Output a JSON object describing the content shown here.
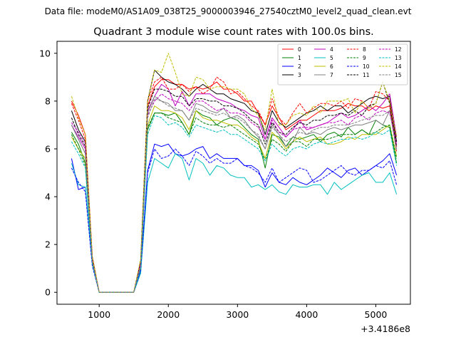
{
  "figure": {
    "suptitle": "Data file: modeM0/AS1A09_038T25_9000003946_27540cztM0_level2_quad_clean.evt",
    "offset_label": "+3.4186e8"
  },
  "chart_data": {
    "type": "line",
    "title": "Quadrant 3 module wise count rates with 100.0s bins.",
    "xlabel": "",
    "ylabel": "",
    "xlim": [
      390,
      5500
    ],
    "ylim": [
      -0.5,
      10.5
    ],
    "x_offset": 341860000,
    "grid": false,
    "legend_position": "top-right",
    "xticks": [
      1000,
      2000,
      3000,
      4000,
      5000
    ],
    "yticks": [
      0,
      2,
      4,
      6,
      8,
      10
    ],
    "x": [
      600,
      700,
      800,
      900,
      1000,
      1100,
      1200,
      1300,
      1400,
      1500,
      1600,
      1700,
      1800,
      1900,
      2000,
      2100,
      2200,
      2300,
      2400,
      2500,
      2600,
      2700,
      2800,
      2900,
      3000,
      3100,
      3200,
      3300,
      3400,
      3500,
      3600,
      3700,
      3800,
      3900,
      4000,
      4100,
      4200,
      4300,
      4400,
      4500,
      4600,
      4700,
      4800,
      4900,
      5000,
      5100,
      5200,
      5300
    ],
    "series": [
      {
        "name": "0",
        "color": "#ff0000",
        "dash": "solid",
        "values": [
          8.0,
          7.4,
          6.6,
          1.5,
          0.0,
          0.0,
          0.0,
          0.0,
          0.0,
          0.0,
          1.2,
          7.8,
          8.6,
          8.9,
          8.9,
          8.7,
          8.7,
          8.5,
          8.6,
          8.5,
          8.6,
          8.8,
          8.5,
          8.5,
          8.3,
          8.0,
          8.0,
          7.5,
          7.0,
          7.8,
          7.3,
          6.8,
          7.0,
          7.2,
          7.2,
          7.4,
          7.6,
          7.6,
          7.6,
          7.7,
          7.9,
          7.8,
          7.8,
          7.6,
          7.8,
          7.7,
          7.8,
          5.9
        ]
      },
      {
        "name": "1",
        "color": "#008000",
        "dash": "solid",
        "values": [
          6.7,
          6.2,
          5.4,
          1.3,
          0.0,
          0.0,
          0.0,
          0.0,
          0.0,
          0.0,
          1.1,
          6.8,
          7.5,
          7.5,
          7.4,
          7.5,
          7.1,
          6.6,
          7.6,
          7.4,
          7.3,
          7.0,
          7.2,
          7.3,
          7.2,
          6.9,
          6.6,
          6.4,
          5.2,
          6.6,
          6.5,
          6.1,
          6.5,
          6.4,
          6.5,
          6.6,
          6.3,
          6.6,
          6.7,
          6.5,
          6.9,
          6.6,
          6.8,
          6.6,
          7.2,
          7.0,
          6.9,
          5.4
        ]
      },
      {
        "name": "2",
        "color": "#0000ff",
        "dash": "solid",
        "values": [
          5.6,
          4.3,
          4.4,
          1.2,
          0.0,
          0.0,
          0.0,
          0.0,
          0.0,
          0.0,
          0.9,
          5.1,
          6.2,
          6.1,
          6.2,
          5.8,
          5.7,
          5.8,
          6.0,
          6.1,
          5.6,
          5.8,
          5.6,
          5.6,
          5.6,
          5.3,
          5.3,
          5.1,
          4.4,
          5.0,
          4.6,
          4.5,
          4.8,
          4.6,
          4.5,
          4.7,
          4.9,
          5.2,
          5.0,
          4.8,
          5.1,
          5.2,
          4.9,
          5.1,
          5.3,
          5.5,
          5.8,
          4.9
        ]
      },
      {
        "name": "3",
        "color": "#000000",
        "dash": "solid",
        "values": [
          7.6,
          6.8,
          6.3,
          1.4,
          0.0,
          0.0,
          0.0,
          0.0,
          0.0,
          0.0,
          1.3,
          8.0,
          9.3,
          9.0,
          8.8,
          8.7,
          8.5,
          8.2,
          8.5,
          8.7,
          8.5,
          8.3,
          8.3,
          8.1,
          8.0,
          7.9,
          7.6,
          7.5,
          6.6,
          7.6,
          7.1,
          6.9,
          7.1,
          7.3,
          7.5,
          7.6,
          7.8,
          7.6,
          7.8,
          7.8,
          7.5,
          7.7,
          7.9,
          8.1,
          8.2,
          8.1,
          8.2,
          6.3
        ]
      },
      {
        "name": "4",
        "color": "#bf00bf",
        "dash": "solid",
        "values": [
          7.0,
          6.5,
          6.0,
          1.4,
          0.0,
          0.0,
          0.0,
          0.0,
          0.0,
          0.0,
          1.2,
          7.6,
          8.2,
          8.7,
          8.5,
          7.8,
          8.4,
          7.8,
          8.3,
          8.3,
          8.3,
          8.1,
          8.0,
          7.9,
          7.7,
          7.6,
          7.4,
          7.3,
          6.4,
          7.3,
          6.9,
          6.5,
          6.8,
          7.2,
          6.8,
          6.9,
          7.0,
          7.1,
          7.3,
          7.5,
          7.3,
          7.4,
          7.6,
          7.8,
          7.6,
          7.9,
          8.3,
          6.5
        ]
      },
      {
        "name": "5",
        "color": "#00bfbf",
        "dash": "solid",
        "values": [
          5.4,
          4.5,
          4.4,
          1.2,
          0.0,
          0.0,
          0.0,
          0.0,
          0.0,
          0.0,
          0.8,
          4.6,
          5.6,
          5.4,
          5.2,
          5.8,
          5.6,
          4.7,
          5.6,
          5.4,
          4.9,
          5.3,
          5.2,
          4.9,
          4.8,
          4.8,
          4.4,
          4.5,
          4.3,
          4.5,
          4.2,
          4.1,
          4.5,
          4.4,
          4.4,
          4.5,
          4.5,
          4.1,
          4.6,
          4.3,
          4.5,
          4.7,
          4.9,
          5.0,
          4.6,
          4.6,
          5.0,
          4.1
        ]
      },
      {
        "name": "6",
        "color": "#bfbf00",
        "dash": "solid",
        "values": [
          6.5,
          6.0,
          5.6,
          1.3,
          0.0,
          0.0,
          0.0,
          0.0,
          0.0,
          0.0,
          1.0,
          7.0,
          7.8,
          7.6,
          7.6,
          7.5,
          7.3,
          6.8,
          7.6,
          7.3,
          7.2,
          7.2,
          7.1,
          7.0,
          7.0,
          6.8,
          6.5,
          6.3,
          5.6,
          6.7,
          6.4,
          6.0,
          6.3,
          6.5,
          6.3,
          6.4,
          6.5,
          6.2,
          6.2,
          6.3,
          6.5,
          6.4,
          6.6,
          6.6,
          6.6,
          6.8,
          7.0,
          5.7
        ]
      },
      {
        "name": "7",
        "color": "#808080",
        "dash": "solid",
        "values": [
          7.0,
          6.4,
          5.8,
          1.3,
          0.0,
          0.0,
          0.0,
          0.0,
          0.0,
          0.0,
          1.1,
          7.5,
          8.2,
          8.0,
          7.9,
          7.6,
          7.6,
          7.2,
          7.9,
          7.8,
          7.6,
          7.5,
          7.7,
          7.3,
          7.4,
          7.2,
          6.8,
          6.5,
          6.0,
          7.0,
          6.6,
          6.1,
          6.3,
          6.9,
          6.6,
          6.7,
          6.6,
          6.8,
          6.9,
          6.8,
          6.9,
          7.0,
          7.0,
          7.1,
          7.2,
          7.0,
          7.6,
          6.0
        ]
      },
      {
        "name": "8",
        "color": "#ff0000",
        "dash": "dashed",
        "values": [
          7.9,
          7.2,
          6.4,
          1.5,
          0.0,
          0.0,
          0.0,
          0.0,
          0.0,
          0.0,
          1.3,
          8.0,
          8.8,
          9.0,
          8.5,
          8.5,
          8.7,
          8.4,
          8.6,
          8.3,
          8.5,
          9.0,
          8.8,
          8.3,
          8.4,
          8.1,
          7.8,
          7.6,
          7.0,
          8.1,
          7.3,
          7.0,
          7.5,
          7.9,
          7.5,
          7.7,
          7.9,
          7.9,
          7.8,
          8.0,
          7.7,
          8.1,
          8.0,
          7.7,
          8.4,
          8.3,
          8.0,
          6.1
        ]
      },
      {
        "name": "9",
        "color": "#008000",
        "dash": "dashed",
        "values": [
          6.6,
          6.0,
          5.3,
          1.3,
          0.0,
          0.0,
          0.0,
          0.0,
          0.0,
          0.0,
          1.0,
          6.9,
          7.5,
          7.5,
          7.3,
          7.2,
          7.1,
          6.6,
          7.3,
          7.1,
          7.0,
          7.0,
          6.9,
          7.0,
          6.8,
          6.6,
          6.4,
          6.2,
          5.5,
          6.4,
          6.2,
          5.9,
          6.3,
          6.3,
          6.1,
          6.4,
          6.4,
          6.4,
          6.5,
          6.6,
          6.6,
          6.6,
          6.8,
          6.6,
          6.7,
          6.9,
          7.0,
          5.6
        ]
      },
      {
        "name": "10",
        "color": "#0000ff",
        "dash": "dashed",
        "values": [
          5.2,
          4.6,
          4.2,
          1.1,
          0.0,
          0.0,
          0.0,
          0.0,
          0.0,
          0.0,
          0.9,
          5.0,
          6.0,
          5.6,
          5.7,
          6.0,
          5.7,
          5.3,
          5.9,
          5.7,
          5.4,
          5.6,
          5.4,
          5.4,
          5.6,
          5.3,
          5.2,
          5.0,
          4.6,
          5.2,
          4.6,
          4.8,
          5.0,
          5.2,
          5.1,
          4.6,
          4.7,
          4.9,
          5.1,
          5.3,
          5.0,
          4.9,
          5.1,
          5.1,
          5.3,
          5.2,
          5.5,
          4.5
        ]
      },
      {
        "name": "11",
        "color": "#000000",
        "dash": "dashed",
        "values": [
          7.3,
          6.6,
          6.1,
          1.4,
          0.0,
          0.0,
          0.0,
          0.0,
          0.0,
          0.0,
          1.2,
          7.7,
          8.5,
          8.5,
          8.4,
          8.2,
          8.2,
          7.8,
          8.1,
          8.1,
          8.0,
          8.0,
          7.8,
          7.8,
          7.7,
          7.5,
          7.2,
          7.0,
          6.2,
          7.1,
          6.7,
          6.6,
          6.9,
          7.1,
          7.0,
          7.2,
          7.2,
          7.4,
          7.4,
          7.5,
          7.4,
          7.6,
          7.4,
          7.8,
          7.9,
          8.8,
          7.9,
          6.1
        ]
      },
      {
        "name": "12",
        "color": "#bf00bf",
        "dash": "dashed",
        "values": [
          7.1,
          6.7,
          6.2,
          1.4,
          0.0,
          0.0,
          0.0,
          0.0,
          0.0,
          0.0,
          1.2,
          7.4,
          8.0,
          8.3,
          8.1,
          8.0,
          7.9,
          7.6,
          8.0,
          8.0,
          7.8,
          7.6,
          7.7,
          7.5,
          7.5,
          7.4,
          7.1,
          6.9,
          6.4,
          7.2,
          6.7,
          6.5,
          6.8,
          6.9,
          6.9,
          6.9,
          7.0,
          7.1,
          7.1,
          7.2,
          7.0,
          7.3,
          7.4,
          7.2,
          7.5,
          7.6,
          7.5,
          6.2
        ]
      },
      {
        "name": "13",
        "color": "#00bfbf",
        "dash": "dashed",
        "values": [
          6.3,
          5.8,
          5.2,
          1.2,
          0.0,
          0.0,
          0.0,
          0.0,
          0.0,
          0.0,
          1.0,
          6.6,
          7.4,
          7.3,
          7.0,
          7.1,
          6.9,
          6.5,
          7.0,
          6.9,
          6.8,
          6.7,
          6.8,
          6.6,
          6.6,
          6.4,
          6.2,
          6.0,
          5.5,
          6.2,
          5.9,
          5.7,
          6.0,
          6.1,
          6.0,
          6.2,
          6.3,
          6.2,
          6.3,
          6.4,
          6.4,
          6.5,
          6.4,
          6.5,
          6.7,
          6.6,
          6.8,
          5.3
        ]
      },
      {
        "name": "14",
        "color": "#bfbf00",
        "dash": "dashed",
        "values": [
          8.2,
          7.3,
          6.6,
          1.5,
          0.0,
          0.0,
          0.0,
          0.0,
          0.0,
          0.0,
          1.4,
          8.0,
          9.3,
          9.2,
          10.0,
          9.2,
          8.3,
          8.2,
          9.0,
          8.9,
          8.5,
          8.6,
          8.6,
          8.5,
          8.5,
          8.3,
          7.7,
          7.4,
          6.8,
          8.5,
          7.0,
          7.0,
          7.4,
          7.5,
          7.4,
          7.8,
          7.5,
          8.0,
          8.0,
          8.0,
          8.1,
          7.5,
          8.0,
          7.7,
          7.9,
          8.8,
          8.0,
          6.5
        ]
      },
      {
        "name": "15",
        "color": "#808080",
        "dash": "dashed",
        "values": [
          7.0,
          6.4,
          5.8,
          1.3,
          0.0,
          0.0,
          0.0,
          0.0,
          0.0,
          0.0,
          1.1,
          7.3,
          8.1,
          8.0,
          7.8,
          7.7,
          7.6,
          7.2,
          7.7,
          7.6,
          7.5,
          7.4,
          7.5,
          7.3,
          7.3,
          7.1,
          6.8,
          6.6,
          6.0,
          6.9,
          6.6,
          6.3,
          6.5,
          6.7,
          6.6,
          6.8,
          6.9,
          6.9,
          7.0,
          7.0,
          7.0,
          7.1,
          7.2,
          7.3,
          7.4,
          7.4,
          7.6,
          5.9
        ]
      }
    ]
  }
}
